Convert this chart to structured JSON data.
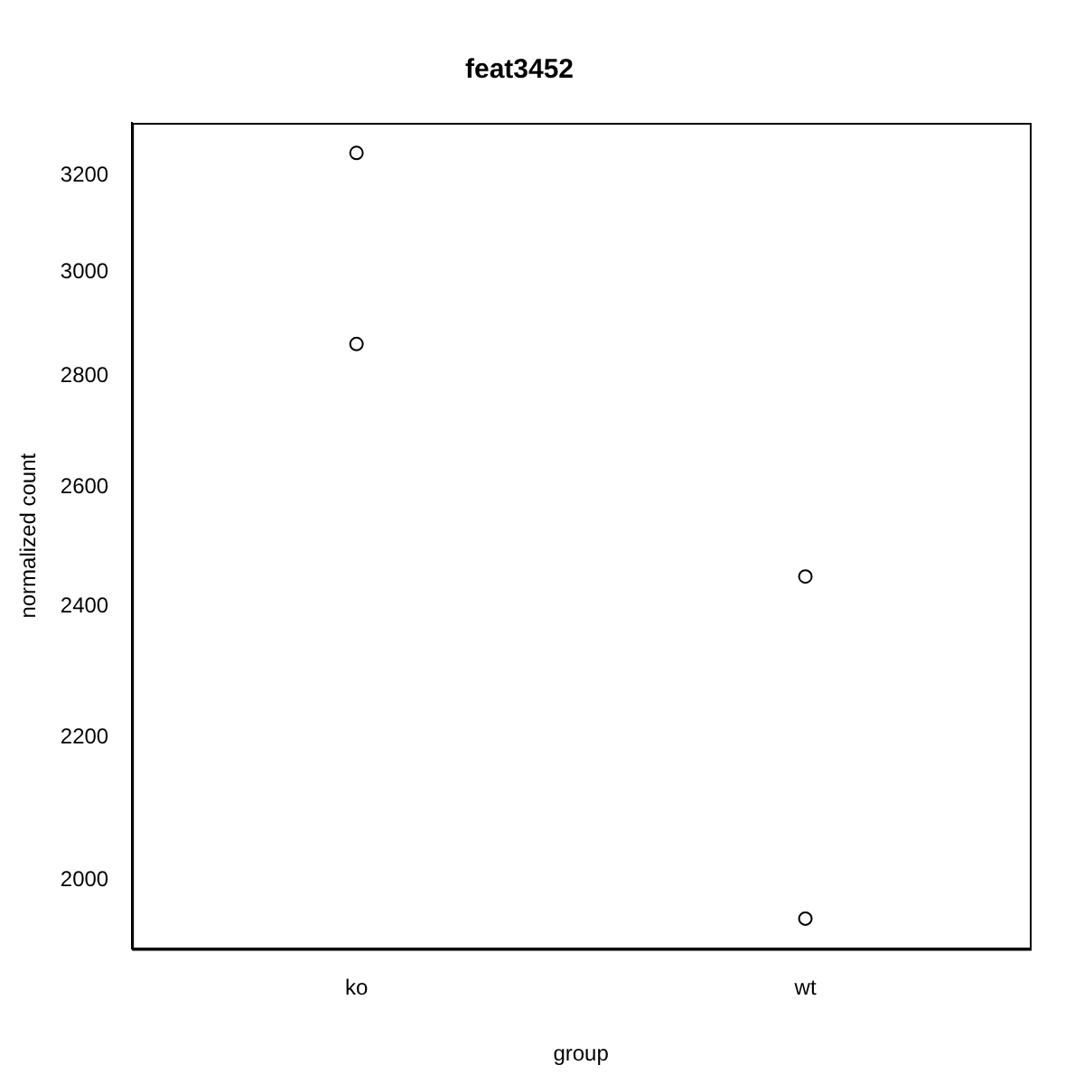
{
  "chart_data": {
    "type": "scatter",
    "title": "feat3452",
    "xlabel": "group",
    "ylabel": "normalized count",
    "categories": [
      "ko",
      "wt"
    ],
    "series": [
      {
        "color": "#000000",
        "values": [
          3249,
          2449
        ]
      },
      {
        "color": "#000000",
        "values": [
          2860,
          1949
        ]
      }
    ],
    "marker": "circle",
    "ylim": [
      1910,
      3315
    ],
    "yticks": [
      2000,
      2200,
      2400,
      2600,
      2800,
      3000,
      3200
    ],
    "log": "y",
    "grid": false,
    "legend": false
  }
}
